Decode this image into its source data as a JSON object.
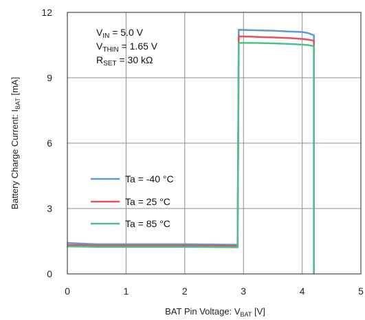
{
  "chart_data": {
    "type": "line",
    "title": "",
    "xlabel": {
      "main": "BAT Pin Voltage: V",
      "sub": "BAT",
      "unit": " [V]"
    },
    "ylabel": {
      "main": "Battery Charge Current: I",
      "sub": "BAT",
      "unit": " [mA]"
    },
    "xlim": [
      0,
      5
    ],
    "ylim": [
      0,
      12
    ],
    "x_ticks": [
      "0",
      "1",
      "2",
      "3",
      "4",
      "5"
    ],
    "y_ticks": [
      "0",
      "3",
      "6",
      "9",
      "12"
    ],
    "grid": true,
    "legend_position": "center-left",
    "conditions": [
      {
        "base": "V",
        "sub": "IN",
        "rest": " = 5.0 V"
      },
      {
        "base": "V",
        "sub": "THIN",
        "rest": " = 1.65 V"
      },
      {
        "base": "R",
        "sub": "SET",
        "rest": " = 30 kΩ"
      }
    ],
    "series": [
      {
        "name": "Ta =  -40 °C",
        "color": "#5b9bd5",
        "x": [
          0,
          0.5,
          1,
          2,
          2.9,
          2.9,
          2.92,
          3.2,
          3.5,
          3.8,
          4.0,
          4.1,
          4.2,
          4.2
        ],
        "y": [
          1.42,
          1.36,
          1.36,
          1.36,
          1.34,
          1.34,
          11.2,
          11.18,
          11.16,
          11.12,
          11.1,
          11.05,
          10.95,
          0
        ]
      },
      {
        "name": "Ta =  25 °C",
        "color": "#e8505b",
        "x": [
          0,
          0.5,
          1,
          2,
          2.9,
          2.9,
          2.92,
          3.2,
          3.5,
          3.8,
          4.0,
          4.1,
          4.2,
          4.2
        ],
        "y": [
          1.33,
          1.3,
          1.3,
          1.3,
          1.28,
          1.28,
          10.9,
          10.88,
          10.85,
          10.82,
          10.78,
          10.75,
          10.7,
          0
        ]
      },
      {
        "name": "Ta =  85 °C",
        "color": "#4cc28a",
        "x": [
          0,
          0.5,
          1,
          2,
          2.9,
          2.9,
          2.92,
          3.2,
          3.5,
          3.8,
          4.0,
          4.1,
          4.2,
          4.2
        ],
        "y": [
          1.26,
          1.24,
          1.24,
          1.24,
          1.22,
          1.22,
          10.6,
          10.6,
          10.58,
          10.55,
          10.52,
          10.5,
          10.45,
          0
        ]
      }
    ]
  }
}
